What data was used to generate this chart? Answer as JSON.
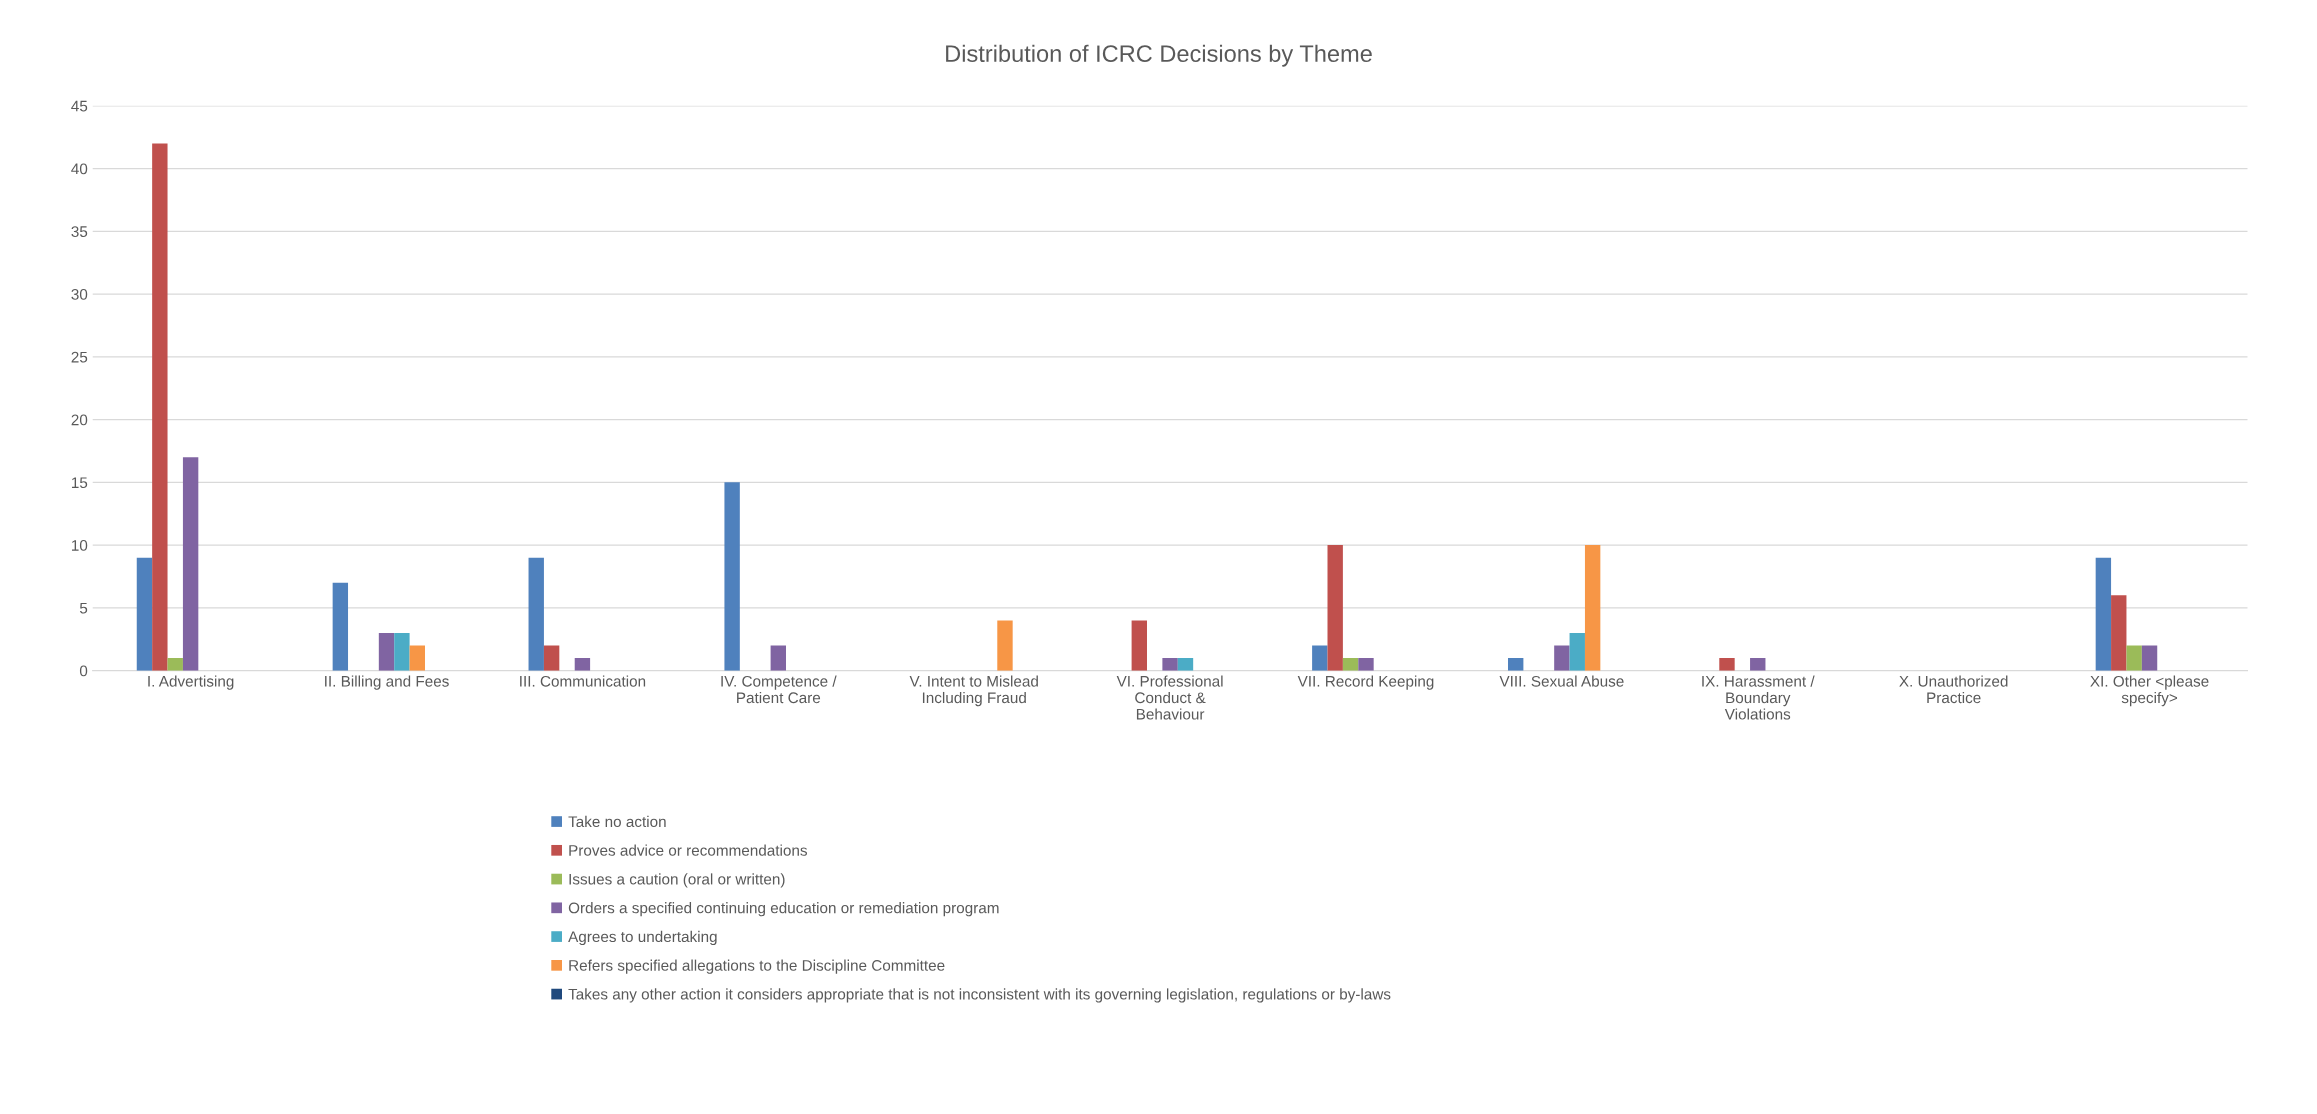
{
  "chart_data": {
    "type": "bar",
    "title": "Distribution of ICRC Decisions by Theme",
    "categories": [
      "I. Advertising",
      "II. Billing and Fees",
      "III. Communication",
      "IV. Competence /\nPatient Care",
      "V. Intent to Mislead\nIncluding Fraud",
      "VI. Professional\nConduct &\nBehaviour",
      "VII. Record Keeping",
      "VIII. Sexual Abuse",
      "IX. Harassment /\nBoundary\nViolations",
      "X. Unauthorized\nPractice",
      "XI. Other <please\nspecify>"
    ],
    "series": [
      {
        "name": "Take no action",
        "color": "#4f81bd",
        "values": [
          9,
          7,
          9,
          15,
          0,
          0,
          2,
          1,
          0,
          0,
          9
        ]
      },
      {
        "name": "Proves advice or recommendations",
        "color": "#c0504d",
        "values": [
          42,
          0,
          2,
          0,
          0,
          4,
          10,
          0,
          1,
          0,
          6
        ]
      },
      {
        "name": "Issues a caution (oral or written)",
        "color": "#9bbb59",
        "values": [
          1,
          0,
          0,
          0,
          0,
          0,
          1,
          0,
          0,
          0,
          2
        ]
      },
      {
        "name": "Orders a specified continuing education or remediation program",
        "color": "#8064a2",
        "values": [
          17,
          3,
          1,
          2,
          0,
          1,
          1,
          2,
          1,
          0,
          2
        ]
      },
      {
        "name": "Agrees to undertaking",
        "color": "#4bacc6",
        "values": [
          0,
          3,
          0,
          0,
          0,
          1,
          0,
          3,
          0,
          0,
          0
        ]
      },
      {
        "name": "Refers specified allegations to the Discipline Committee",
        "color": "#f79646",
        "values": [
          0,
          2,
          0,
          0,
          4,
          0,
          0,
          10,
          0,
          0,
          0
        ]
      },
      {
        "name": "Takes any other action it considers appropriate that is not inconsistent with its governing legislation, regulations or by-laws",
        "color": "#1f497d",
        "values": [
          0,
          0,
          0,
          0,
          0,
          0,
          0,
          0,
          0,
          0,
          0
        ]
      }
    ],
    "ylim": [
      0,
      45
    ],
    "yticks": [
      0,
      5,
      10,
      15,
      20,
      25,
      30,
      35,
      40,
      45
    ],
    "grid": "y",
    "legend": "bottom"
  }
}
